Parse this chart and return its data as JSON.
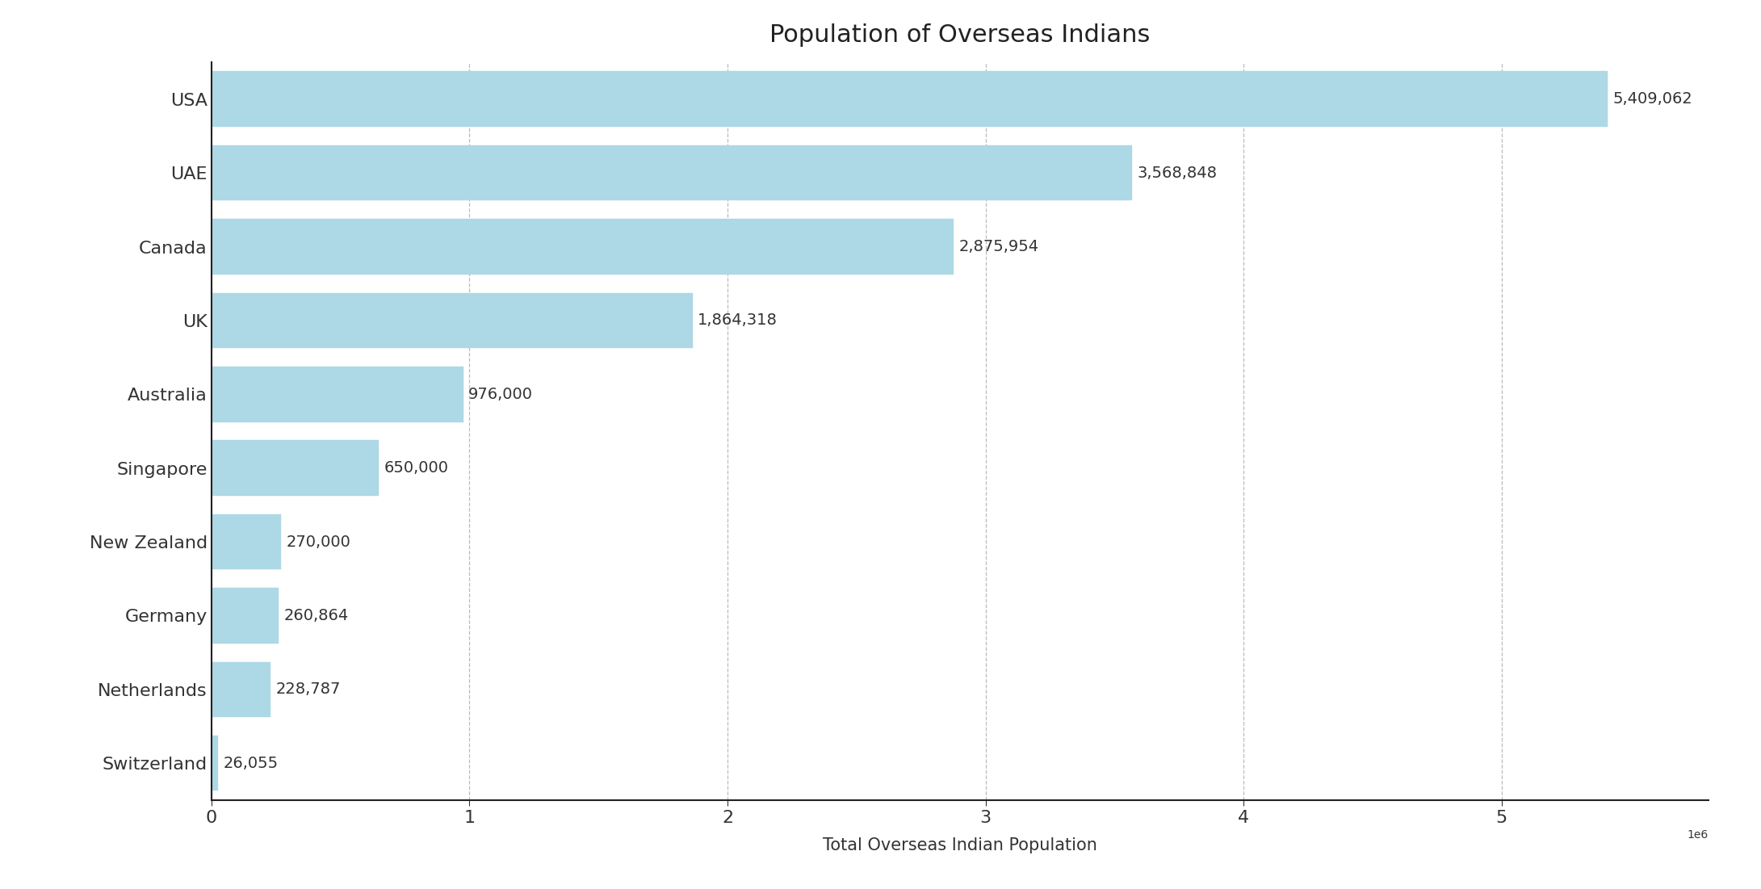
{
  "title": "Population of Overseas Indians",
  "xlabel": "Total Overseas Indian Population",
  "categories": [
    "Switzerland",
    "Netherlands",
    "Germany",
    "New Zealand",
    "Singapore",
    "Australia",
    "UK",
    "Canada",
    "UAE",
    "USA"
  ],
  "values": [
    26055,
    228787,
    260864,
    270000,
    650000,
    976000,
    1864318,
    2875954,
    3568848,
    5409062
  ],
  "labels": [
    "26,055",
    "228,787",
    "260,864",
    "270,000",
    "650,000",
    "976,000",
    "1,864,318",
    "2,875,954",
    "3,568,848",
    "5,409,062"
  ],
  "bar_color": "#add8e6",
  "bar_edge_color": "#add8e6",
  "background_color": "#ffffff",
  "title_fontsize": 22,
  "label_fontsize": 15,
  "tick_fontsize": 16,
  "value_fontsize": 14,
  "xlim": [
    0,
    5800000
  ],
  "grid_color": "#aaaaaa",
  "spine_color": "#222222"
}
